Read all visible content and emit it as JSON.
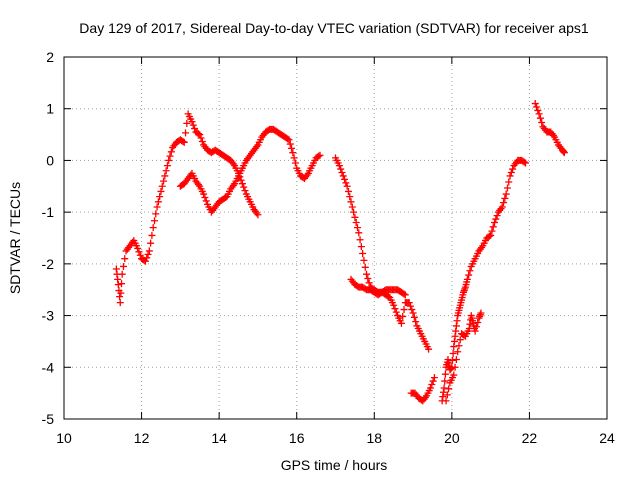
{
  "chart_data": {
    "type": "scatter",
    "title": "Day 129 of 2017, Sidereal Day-to-day VTEC variation (SDTVAR) for receiver aps1",
    "xlabel": "GPS time / hours",
    "ylabel": "SDTVAR / TECUs",
    "xlim": [
      10,
      24
    ],
    "ylim": [
      -5,
      2
    ],
    "xticks": [
      "10",
      "12",
      "14",
      "16",
      "18",
      "20",
      "22",
      "24"
    ],
    "yticks": [
      "2",
      "1",
      "0",
      "-1",
      "-2",
      "-3",
      "-4",
      "-5"
    ],
    "grid": true,
    "marker": "+",
    "series": [
      {
        "name": "aps1",
        "color": "#ff0000",
        "segments": [
          [
            [
              11.35,
              -2.1
            ],
            [
              11.4,
              -2.4
            ],
            [
              11.45,
              -2.75
            ],
            [
              11.5,
              -2.2
            ],
            [
              11.6,
              -1.75
            ],
            [
              11.7,
              -1.65
            ],
            [
              11.8,
              -1.55
            ],
            [
              11.9,
              -1.7
            ],
            [
              12.0,
              -1.9
            ],
            [
              12.1,
              -1.95
            ],
            [
              12.2,
              -1.75
            ],
            [
              12.3,
              -1.3
            ],
            [
              12.4,
              -0.9
            ],
            [
              12.5,
              -0.6
            ],
            [
              12.6,
              -0.3
            ],
            [
              12.7,
              0.0
            ],
            [
              12.8,
              0.25
            ],
            [
              12.9,
              0.35
            ],
            [
              13.0,
              0.4
            ],
            [
              13.1,
              0.35
            ],
            [
              13.2,
              0.9
            ],
            [
              13.3,
              0.75
            ],
            [
              13.4,
              0.55
            ],
            [
              13.5,
              0.5
            ],
            [
              13.6,
              0.3
            ],
            [
              13.7,
              0.2
            ],
            [
              13.8,
              0.15
            ],
            [
              13.9,
              0.2
            ],
            [
              14.0,
              0.15
            ],
            [
              14.1,
              0.1
            ],
            [
              14.2,
              0.05
            ],
            [
              14.3,
              0.0
            ],
            [
              14.4,
              -0.1
            ],
            [
              14.5,
              -0.25
            ],
            [
              14.6,
              -0.45
            ],
            [
              14.7,
              -0.65
            ],
            [
              14.8,
              -0.8
            ],
            [
              14.9,
              -0.95
            ],
            [
              15.0,
              -1.05
            ]
          ],
          [
            [
              13.0,
              -0.5
            ],
            [
              13.1,
              -0.45
            ],
            [
              13.2,
              -0.35
            ],
            [
              13.3,
              -0.25
            ],
            [
              13.4,
              -0.4
            ],
            [
              13.5,
              -0.5
            ],
            [
              13.6,
              -0.65
            ],
            [
              13.7,
              -0.85
            ],
            [
              13.8,
              -1.0
            ],
            [
              13.9,
              -0.9
            ],
            [
              14.0,
              -0.8
            ],
            [
              14.1,
              -0.75
            ],
            [
              14.2,
              -0.7
            ],
            [
              14.3,
              -0.55
            ],
            [
              14.4,
              -0.45
            ],
            [
              14.5,
              -0.3
            ],
            [
              14.6,
              -0.15
            ],
            [
              14.7,
              0.0
            ],
            [
              14.8,
              0.1
            ],
            [
              14.9,
              0.2
            ],
            [
              15.0,
              0.3
            ],
            [
              15.1,
              0.45
            ],
            [
              15.2,
              0.55
            ],
            [
              15.3,
              0.6
            ],
            [
              15.4,
              0.6
            ],
            [
              15.5,
              0.55
            ],
            [
              15.6,
              0.5
            ],
            [
              15.7,
              0.45
            ],
            [
              15.8,
              0.4
            ],
            [
              15.9,
              0.15
            ],
            [
              16.0,
              -0.15
            ],
            [
              16.1,
              -0.3
            ],
            [
              16.2,
              -0.35
            ],
            [
              16.3,
              -0.25
            ],
            [
              16.4,
              -0.1
            ],
            [
              16.5,
              0.05
            ],
            [
              16.6,
              0.1
            ]
          ],
          [
            [
              17.0,
              0.05
            ],
            [
              17.1,
              -0.1
            ],
            [
              17.2,
              -0.3
            ],
            [
              17.3,
              -0.5
            ],
            [
              17.4,
              -0.8
            ],
            [
              17.5,
              -1.1
            ],
            [
              17.6,
              -1.4
            ],
            [
              17.7,
              -1.8
            ],
            [
              17.8,
              -2.2
            ],
            [
              17.9,
              -2.45
            ],
            [
              18.0,
              -2.5
            ],
            [
              18.1,
              -2.55
            ],
            [
              18.2,
              -2.55
            ],
            [
              18.3,
              -2.6
            ],
            [
              18.4,
              -2.65
            ],
            [
              18.5,
              -2.8
            ],
            [
              18.6,
              -3.0
            ],
            [
              18.7,
              -3.15
            ],
            [
              18.8,
              -2.75
            ],
            [
              18.9,
              -2.75
            ],
            [
              19.0,
              -2.95
            ],
            [
              19.1,
              -3.2
            ],
            [
              19.2,
              -3.35
            ],
            [
              19.3,
              -3.5
            ],
            [
              19.4,
              -3.65
            ]
          ],
          [
            [
              17.4,
              -2.3
            ],
            [
              17.5,
              -2.4
            ],
            [
              17.6,
              -2.45
            ],
            [
              17.7,
              -2.45
            ],
            [
              17.8,
              -2.5
            ],
            [
              17.9,
              -2.5
            ],
            [
              18.0,
              -2.55
            ],
            [
              18.1,
              -2.6
            ],
            [
              18.2,
              -2.55
            ],
            [
              18.3,
              -2.5
            ],
            [
              18.4,
              -2.5
            ],
            [
              18.5,
              -2.5
            ],
            [
              18.6,
              -2.5
            ],
            [
              18.7,
              -2.55
            ],
            [
              18.8,
              -2.6
            ]
          ],
          [
            [
              18.95,
              -4.5
            ],
            [
              19.05,
              -4.5
            ],
            [
              19.15,
              -4.6
            ],
            [
              19.25,
              -4.65
            ],
            [
              19.35,
              -4.55
            ],
            [
              19.45,
              -4.4
            ],
            [
              19.55,
              -4.2
            ]
          ],
          [
            [
              19.75,
              -4.65
            ],
            [
              19.8,
              -4.4
            ],
            [
              19.85,
              -4.0
            ],
            [
              19.9,
              -3.85
            ],
            [
              19.95,
              -4.05
            ],
            [
              20.0,
              -4.0
            ],
            [
              20.05,
              -3.6
            ],
            [
              20.1,
              -3.3
            ],
            [
              20.15,
              -3.0
            ],
            [
              20.2,
              -2.85
            ],
            [
              20.25,
              -2.7
            ],
            [
              20.3,
              -2.55
            ],
            [
              20.35,
              -2.45
            ],
            [
              20.4,
              -2.3
            ],
            [
              20.5,
              -2.05
            ],
            [
              20.6,
              -1.9
            ],
            [
              20.7,
              -1.75
            ],
            [
              20.8,
              -1.65
            ],
            [
              20.9,
              -1.5
            ],
            [
              21.0,
              -1.45
            ],
            [
              21.1,
              -1.2
            ],
            [
              21.2,
              -1.0
            ],
            [
              21.3,
              -0.9
            ],
            [
              21.4,
              -0.65
            ],
            [
              21.5,
              -0.3
            ],
            [
              21.6,
              -0.1
            ],
            [
              21.7,
              0.0
            ],
            [
              21.8,
              0.0
            ],
            [
              21.9,
              -0.05
            ]
          ],
          [
            [
              19.85,
              -4.65
            ],
            [
              19.95,
              -4.3
            ],
            [
              20.05,
              -4.15
            ],
            [
              20.15,
              -3.7
            ],
            [
              20.25,
              -3.35
            ],
            [
              20.35,
              -3.4
            ],
            [
              20.45,
              -3.25
            ],
            [
              20.5,
              -3.0
            ],
            [
              20.55,
              -3.15
            ],
            [
              20.6,
              -3.3
            ],
            [
              20.7,
              -3.05
            ],
            [
              20.75,
              -2.95
            ]
          ],
          [
            [
              22.15,
              1.1
            ],
            [
              22.25,
              0.9
            ],
            [
              22.35,
              0.65
            ],
            [
              22.45,
              0.55
            ],
            [
              22.55,
              0.55
            ],
            [
              22.65,
              0.45
            ],
            [
              22.75,
              0.3
            ],
            [
              22.85,
              0.2
            ],
            [
              22.9,
              0.15
            ]
          ]
        ]
      }
    ]
  }
}
